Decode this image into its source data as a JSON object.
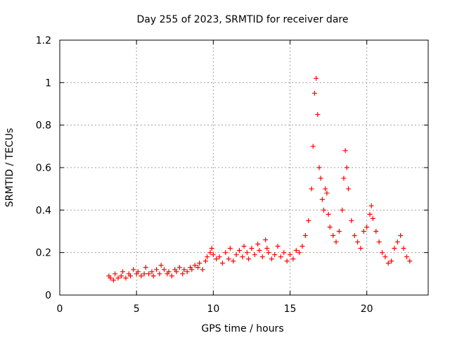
{
  "chart_data": {
    "type": "scatter",
    "title": "Day 255 of 2023, SRMTID for receiver dare",
    "xlabel": "GPS time / hours",
    "ylabel": "SRMTID / TECUs",
    "xlim": [
      0,
      24
    ],
    "ylim": [
      0,
      1.2
    ],
    "x_ticks": [
      0,
      5,
      10,
      15,
      20
    ],
    "x_tick_labels": [
      "0",
      "5",
      "10",
      "15",
      "20"
    ],
    "y_ticks": [
      0,
      0.2,
      0.4,
      0.6,
      0.8,
      1.0,
      1.2
    ],
    "y_tick_labels": [
      "0",
      "0.2",
      "0.4",
      "0.6",
      "0.8",
      "1",
      "1.2"
    ],
    "grid": true,
    "marker": "+",
    "series": [
      {
        "name": "SRMTID",
        "color": "#ff0000",
        "x": [
          3.2,
          3.3,
          3.5,
          3.6,
          3.8,
          4.0,
          4.1,
          4.3,
          4.5,
          4.6,
          4.8,
          5.0,
          5.1,
          5.3,
          5.5,
          5.6,
          5.8,
          6.0,
          6.1,
          6.3,
          6.5,
          6.6,
          6.8,
          7.0,
          7.1,
          7.3,
          7.5,
          7.6,
          7.8,
          8.0,
          8.1,
          8.3,
          8.5,
          8.6,
          8.8,
          9.0,
          9.1,
          9.3,
          9.5,
          9.6,
          9.8,
          9.9,
          10.0,
          10.2,
          10.4,
          10.6,
          10.8,
          11.0,
          11.1,
          11.3,
          11.5,
          11.7,
          11.9,
          12.0,
          12.2,
          12.3,
          12.5,
          12.7,
          12.9,
          13.0,
          13.2,
          13.4,
          13.5,
          13.6,
          13.8,
          14.0,
          14.2,
          14.4,
          14.6,
          14.8,
          15.0,
          15.2,
          15.4,
          15.6,
          15.8,
          16.0,
          16.2,
          16.4,
          16.5,
          16.6,
          16.7,
          16.8,
          16.9,
          17.0,
          17.1,
          17.2,
          17.3,
          17.4,
          17.5,
          17.6,
          17.8,
          18.0,
          18.2,
          18.4,
          18.5,
          18.6,
          18.7,
          18.8,
          19.0,
          19.2,
          19.4,
          19.6,
          19.8,
          20.0,
          20.2,
          20.3,
          20.4,
          20.6,
          20.8,
          21.0,
          21.2,
          21.4,
          21.6,
          21.8,
          22.0,
          22.2,
          22.4,
          22.6,
          22.8
        ],
        "values": [
          0.09,
          0.08,
          0.07,
          0.1,
          0.08,
          0.09,
          0.11,
          0.08,
          0.1,
          0.09,
          0.12,
          0.1,
          0.11,
          0.09,
          0.1,
          0.13,
          0.1,
          0.11,
          0.09,
          0.12,
          0.1,
          0.14,
          0.12,
          0.1,
          0.11,
          0.09,
          0.12,
          0.11,
          0.13,
          0.1,
          0.12,
          0.11,
          0.13,
          0.12,
          0.14,
          0.13,
          0.15,
          0.12,
          0.16,
          0.18,
          0.2,
          0.22,
          0.19,
          0.17,
          0.18,
          0.15,
          0.2,
          0.17,
          0.22,
          0.16,
          0.19,
          0.21,
          0.18,
          0.23,
          0.2,
          0.17,
          0.22,
          0.19,
          0.24,
          0.21,
          0.18,
          0.26,
          0.22,
          0.2,
          0.17,
          0.19,
          0.23,
          0.18,
          0.2,
          0.16,
          0.19,
          0.17,
          0.21,
          0.2,
          0.23,
          0.28,
          0.35,
          0.5,
          0.7,
          0.95,
          1.02,
          0.85,
          0.6,
          0.55,
          0.45,
          0.4,
          0.5,
          0.48,
          0.38,
          0.32,
          0.28,
          0.25,
          0.3,
          0.4,
          0.55,
          0.68,
          0.6,
          0.5,
          0.35,
          0.28,
          0.25,
          0.22,
          0.3,
          0.32,
          0.38,
          0.42,
          0.36,
          0.3,
          0.25,
          0.2,
          0.18,
          0.15,
          0.16,
          0.22,
          0.25,
          0.28,
          0.22,
          0.18,
          0.16
        ]
      }
    ]
  }
}
